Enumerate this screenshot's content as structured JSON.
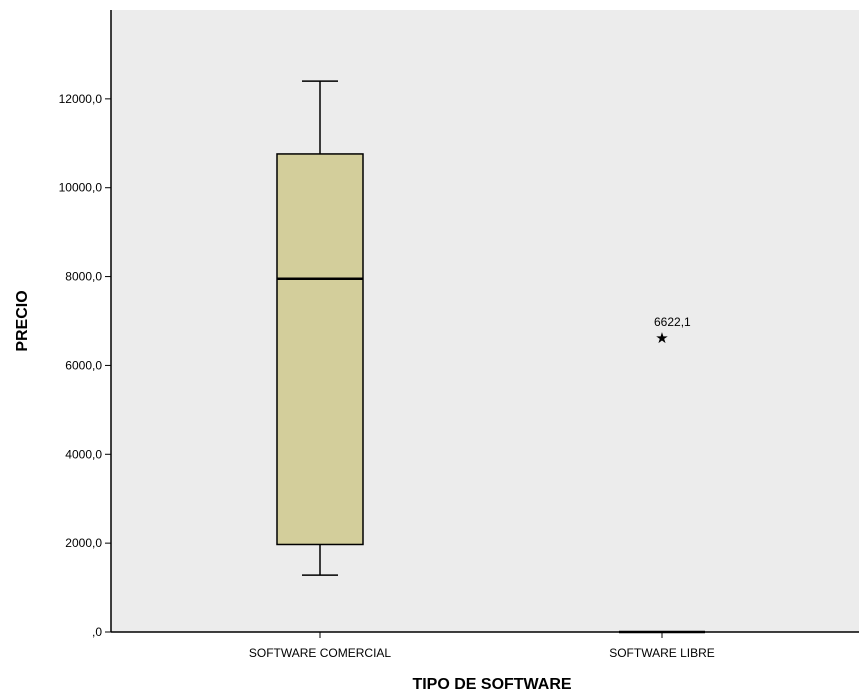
{
  "chart_data": {
    "type": "boxplot",
    "title": "",
    "xlabel": "TIPO DE SOFTWARE",
    "ylabel": "PRECIO",
    "ylim": [
      0,
      14000
    ],
    "yticks": [
      0,
      2000,
      4000,
      6000,
      8000,
      10000,
      12000
    ],
    "ytick_labels": [
      ",0",
      "2000,0",
      "4000,0",
      "6000,0",
      "8000,0",
      "10000,0",
      "12000,0"
    ],
    "grid": false,
    "colors": {
      "plot_bg": "#ececec",
      "box_fill": "#d3ce9b",
      "axis": "#000000"
    },
    "categories": [
      "SOFTWARE COMERCIAL",
      "SOFTWARE LIBRE"
    ],
    "boxes": [
      {
        "category": "SOFTWARE COMERCIAL",
        "min": 1280,
        "q1": 1970,
        "median": 7950,
        "q3": 10760,
        "max": 12400
      },
      {
        "category": "SOFTWARE LIBRE",
        "min": 0,
        "q1": 0,
        "median": 0,
        "q3": 0,
        "max": 0
      }
    ],
    "outliers": [
      {
        "category": "SOFTWARE LIBRE",
        "value": 6622.1,
        "label": "6622,1",
        "marker": "★"
      }
    ]
  }
}
